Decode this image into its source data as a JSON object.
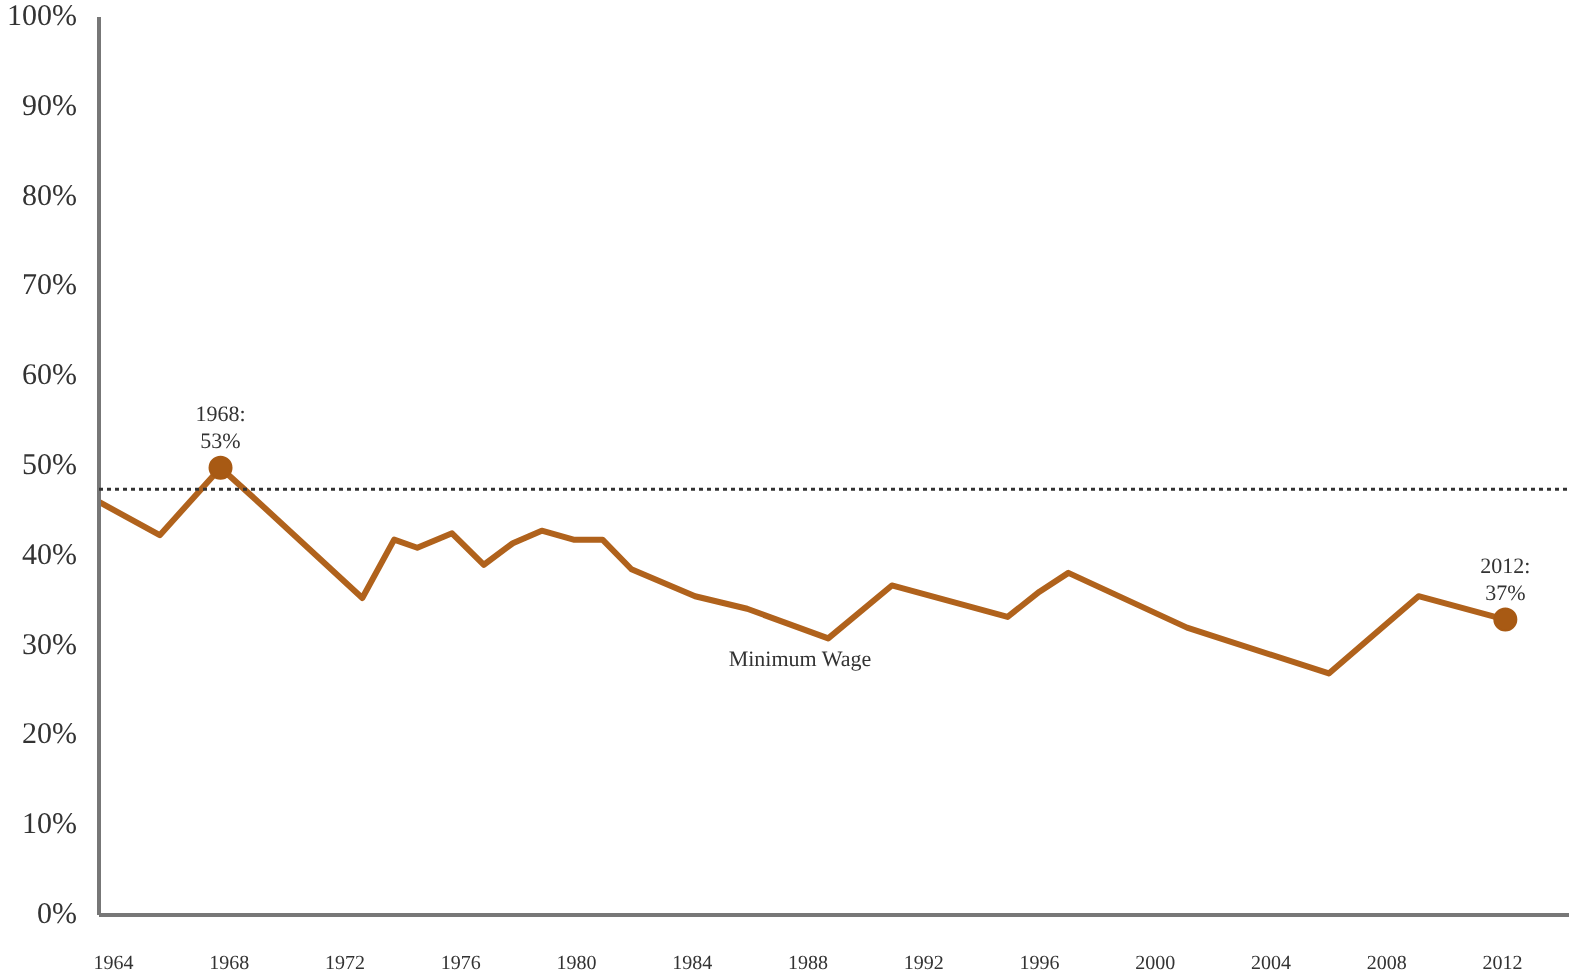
{
  "chart_data": {
    "type": "line",
    "grid": false,
    "legend": false,
    "marker": "none",
    "line_style": "solid",
    "xlim": [
      1963.5,
      2014.3
    ],
    "xticks": [
      1964,
      1968,
      1972,
      1976,
      1980,
      1984,
      1988,
      1992,
      1996,
      2000,
      2004,
      2008,
      2012
    ],
    "ylim": [
      0,
      100
    ],
    "yticks": [
      {
        "value": 0,
        "label": "0%"
      },
      {
        "value": 10,
        "label": "10%"
      },
      {
        "value": 20,
        "label": "20%"
      },
      {
        "value": 30,
        "label": "30%"
      },
      {
        "value": 40,
        "label": "40%"
      },
      {
        "value": 50,
        "label": "50%"
      },
      {
        "value": 60,
        "label": "60%"
      },
      {
        "value": 70,
        "label": "70%"
      },
      {
        "value": 80,
        "label": "80%"
      },
      {
        "value": 90,
        "label": "90%"
      },
      {
        "value": 100,
        "label": "100%"
      }
    ],
    "series": [
      {
        "name": "Minimum Wage",
        "color": "#b0621c",
        "x": [
          1963.5,
          1965.6,
          1967.7,
          1968.9,
          1972.6,
          1973.7,
          1974.5,
          1975.7,
          1976.8,
          1977.8,
          1978.8,
          1979.9,
          1980.9,
          1981.9,
          1984.1,
          1985.9,
          1988.7,
          1990.9,
          1994.9,
          1996.0,
          1997.0,
          2001.1,
          2006.0,
          2009.1,
          2012.1
        ],
        "values": [
          46.0,
          42.3,
          49.8,
          46.3,
          35.3,
          41.8,
          40.9,
          42.5,
          39.0,
          41.4,
          42.8,
          41.8,
          41.8,
          38.5,
          35.5,
          34.1,
          30.8,
          36.7,
          33.2,
          36.0,
          38.1,
          32.0,
          26.9,
          35.5,
          32.9
        ]
      },
      {
        "type": "scatter",
        "marker": "circle",
        "color": "#a85a14",
        "x": [
          1967.7,
          2012.1
        ],
        "values": [
          49.8,
          32.9
        ]
      }
    ],
    "ref_lines": [
      {
        "axis": "y",
        "value": 47.4,
        "color": "#333333",
        "line_style": "dotted"
      }
    ],
    "annotations": [
      {
        "text": "1968:\n53%",
        "x": 1967.7,
        "y": 49.8
      },
      {
        "text": "2012:\n37%",
        "x": 2012.1,
        "y": 32.9
      }
    ]
  }
}
